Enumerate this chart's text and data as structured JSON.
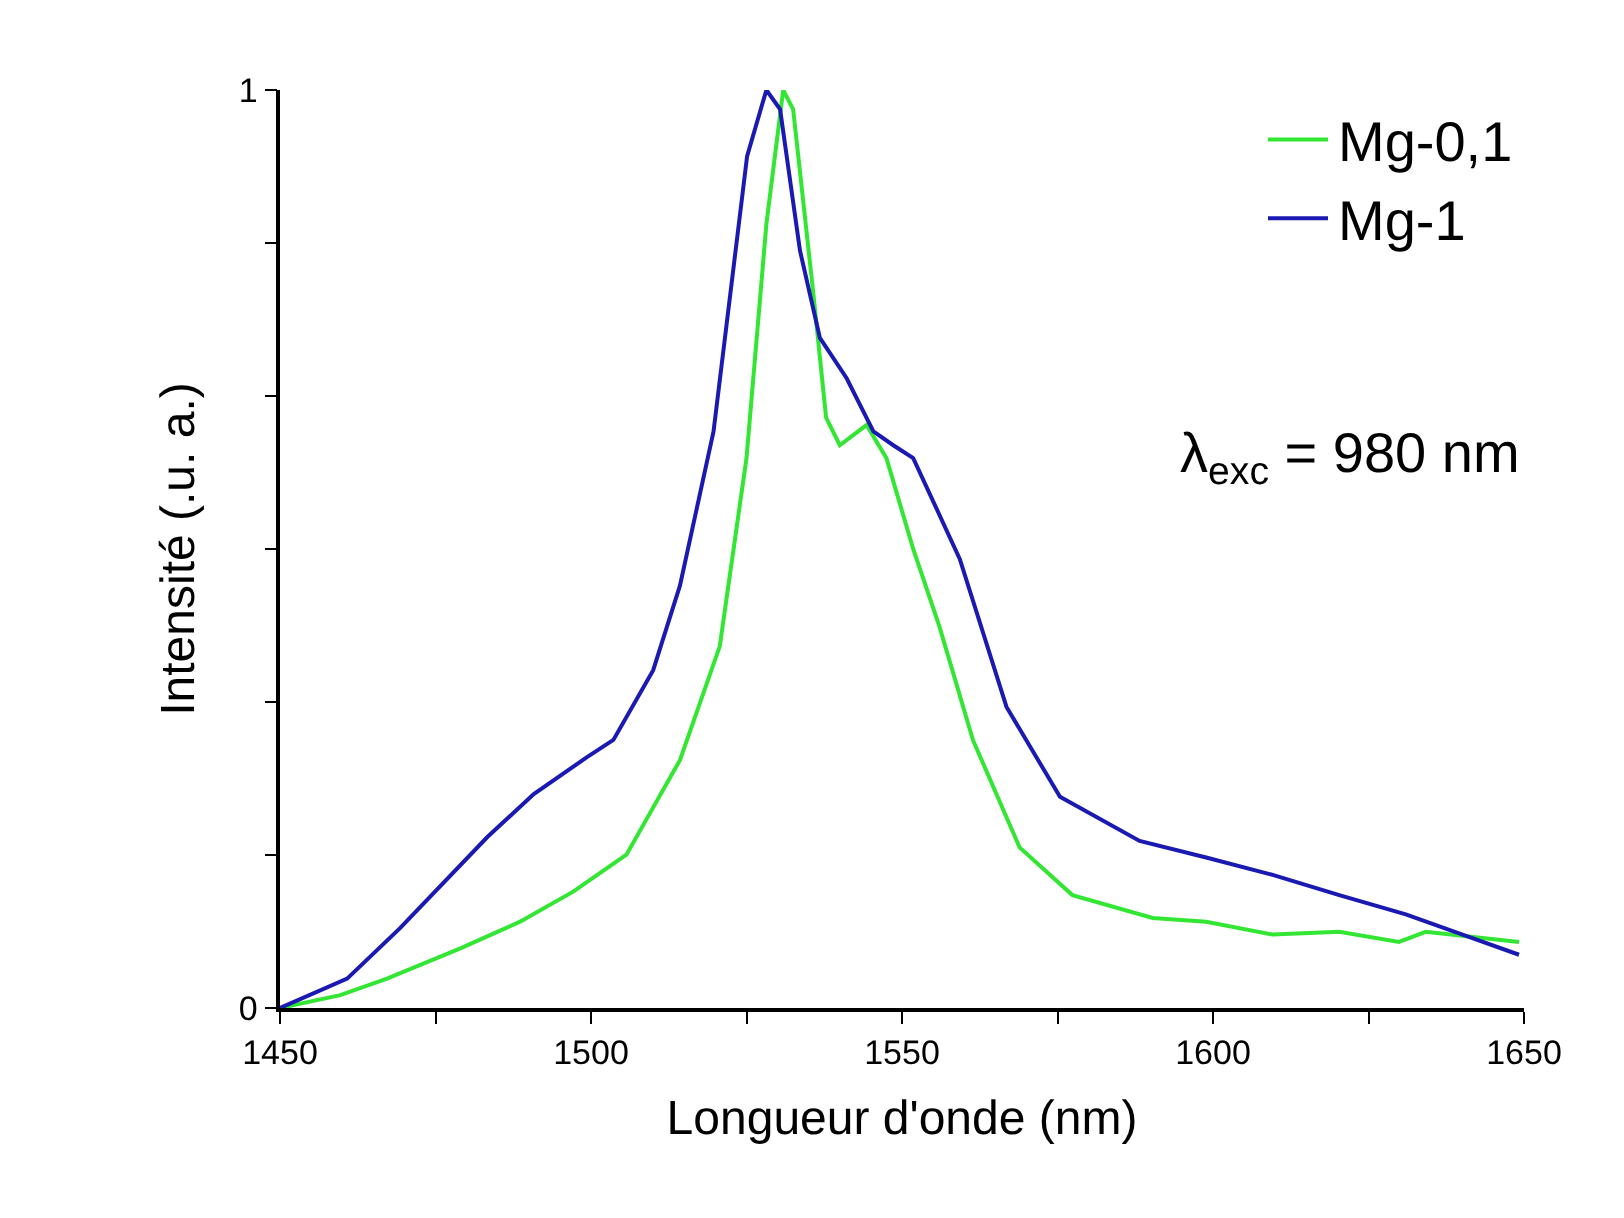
{
  "chart_data": {
    "type": "line",
    "xlabel": "Longueur d'onde (nm)",
    "ylabel": "Intensité (.u. a.)",
    "xlim": [
      1450,
      1650
    ],
    "ylim": [
      0,
      1
    ],
    "xticks": [
      1450,
      {
        "value": 1475,
        "label": null
      },
      1500,
      {
        "value": 1525,
        "label": null
      },
      1550,
      {
        "value": 1575,
        "label": null
      },
      1600,
      {
        "value": 1625,
        "label": null
      },
      1650
    ],
    "yticks": [
      0,
      {
        "value": 0.167,
        "label": null
      },
      {
        "value": 0.333,
        "label": null
      },
      {
        "value": 0.5,
        "label": null
      },
      {
        "value": 0.667,
        "label": null
      },
      {
        "value": 0.833,
        "label": null
      },
      1
    ],
    "legend": "top right",
    "line_style": "solid",
    "annotations": [
      "λ$_{exc}$ = 980 nm"
    ],
    "series": [
      {
        "name": "Mg-0,1",
        "color": "#33e633",
        "x": [
          1450,
          1459.7,
          1467.2,
          1479,
          1488.6,
          1497.2,
          1505.7,
          1514.3,
          1520.7,
          1525,
          1528.2,
          1530.9,
          1532.5,
          1535.7,
          1537.8,
          1540,
          1544.3,
          1547.5,
          1551.8,
          1556,
          1561.4,
          1568.9,
          1577.4,
          1590.3,
          1598.9,
          1609.6,
          1620.3,
          1629.9,
          1634.2,
          1649.2
        ],
        "values": [
          0,
          0.014,
          0.032,
          0.065,
          0.094,
          0.127,
          0.167,
          0.27,
          0.394,
          0.599,
          0.854,
          1.0,
          0.979,
          0.781,
          0.643,
          0.613,
          0.635,
          0.599,
          0.5,
          0.416,
          0.292,
          0.175,
          0.123,
          0.098,
          0.094,
          0.08,
          0.083,
          0.072,
          0.083,
          0.072
        ]
      },
      {
        "name": "Mg-1",
        "color": "#1a1ab3",
        "x": [
          1450,
          1460.8,
          1469.3,
          1483.3,
          1490.8,
          1499.3,
          1503.6,
          1510,
          1514.3,
          1519.7,
          1525.1,
          1528.2,
          1530.4,
          1533.6,
          1536.8,
          1541.1,
          1545.4,
          1548.6,
          1551.8,
          1559.3,
          1566.8,
          1575.4,
          1588.2,
          1598.9,
          1609.6,
          1620.3,
          1631,
          1641.7,
          1649.2
        ],
        "values": [
          0,
          0.032,
          0.087,
          0.186,
          0.233,
          0.273,
          0.292,
          0.368,
          0.46,
          0.628,
          0.928,
          1.0,
          0.979,
          0.825,
          0.73,
          0.686,
          0.628,
          0.613,
          0.599,
          0.489,
          0.328,
          0.23,
          0.182,
          0.164,
          0.145,
          0.123,
          0.102,
          0.076,
          0.058
        ]
      }
    ]
  }
}
